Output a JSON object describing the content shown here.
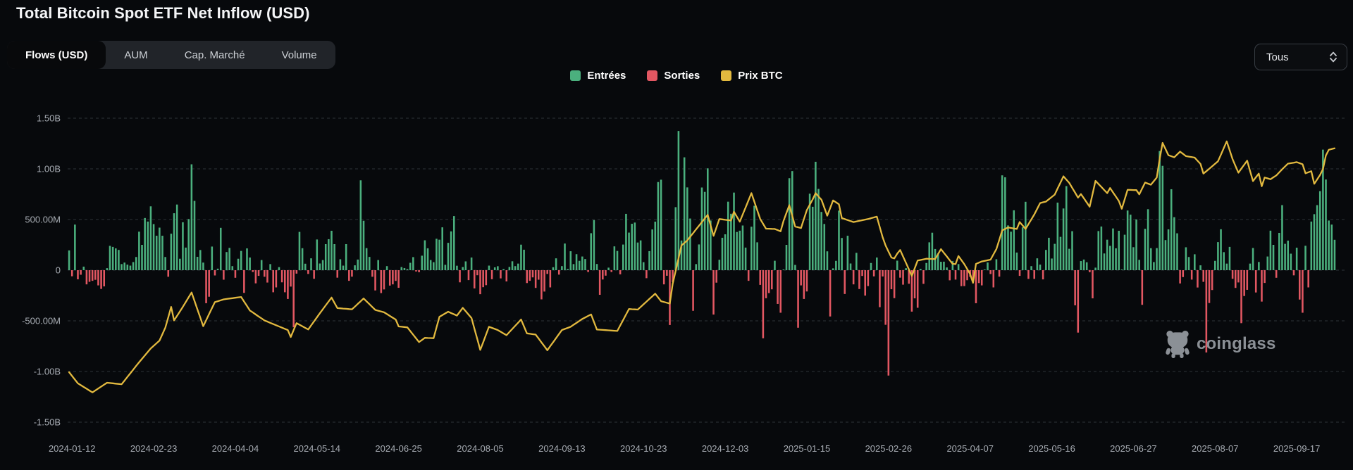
{
  "page": {
    "title": "Total Bitcoin Spot ETF Net Inflow (USD)"
  },
  "tabs": [
    {
      "label": "Flows (USD)",
      "active": true
    },
    {
      "label": "AUM",
      "active": false
    },
    {
      "label": "Cap. Marché",
      "active": false
    },
    {
      "label": "Volume",
      "active": false
    }
  ],
  "range_select": {
    "value": "Tous"
  },
  "legend": [
    {
      "label": "Entrées",
      "color": "#4bb07e"
    },
    {
      "label": "Sorties",
      "color": "#e25762"
    },
    {
      "label": "Prix BTC",
      "color": "#e2b93f"
    }
  ],
  "watermark": {
    "text": "coinglass"
  },
  "chart_data": {
    "type": "bar+line",
    "title": "Total Bitcoin Spot ETF Net Inflow (USD)",
    "grid": "horizontal-dashed",
    "legend_position": "top-center",
    "y_axis": {
      "tick_labels": [
        "1.50B",
        "1.00B",
        "500.00M",
        "0",
        "-500.00M",
        "-1.00B",
        "-1.50B"
      ],
      "tick_values_m": [
        1500,
        1000,
        500,
        0,
        -500,
        -1000,
        -1500
      ],
      "ylim_m": [
        -1500,
        1500
      ]
    },
    "x_axis": {
      "tick_labels": [
        "2024-01-12",
        "2024-02-23",
        "2024-04-04",
        "2024-05-14",
        "2024-06-25",
        "2024-08-05",
        "2024-09-13",
        "2024-10-23",
        "2024-12-03",
        "2025-01-15",
        "2025-02-26",
        "2025-04-07",
        "2025-05-16",
        "2025-06-27",
        "2025-08-07",
        "2025-09-17"
      ],
      "tick_indices": [
        1,
        29,
        57,
        85,
        113,
        141,
        169,
        197,
        225,
        253,
        281,
        309,
        337,
        365,
        393,
        421
      ]
    },
    "series": [
      {
        "name": "Net flow (USD millions, green=Entrées, red=Sorties)",
        "type": "bar",
        "color_positive": "#4bb07e",
        "color_negative": "#e25762",
        "values_m": [
          195,
          -60,
          450,
          -90,
          -45,
          35,
          -140,
          -115,
          -105,
          -95,
          -150,
          -185,
          -160,
          20,
          240,
          230,
          215,
          200,
          60,
          75,
          55,
          45,
          80,
          130,
          380,
          250,
          515,
          480,
          630,
          455,
          340,
          420,
          340,
          130,
          -65,
          360,
          562,
          648,
          113,
          473,
          223,
          505,
          1045,
          684,
          132,
          199,
          75,
          -326,
          -262,
          233,
          -52,
          15,
          418,
          -94,
          179,
          220,
          40,
          -75,
          113,
          190,
          -224,
          215,
          125,
          -18,
          -130,
          -56,
          100,
          -65,
          -122,
          60,
          -218,
          -170,
          30,
          -120,
          -218,
          -284,
          -162,
          -564,
          -34,
          378,
          217,
          64,
          -37,
          117,
          -85,
          303,
          66,
          100,
          257,
          306,
          389,
          257,
          -74,
          108,
          45,
          257,
          -105,
          -64,
          48,
          105,
          887,
          488,
          218,
          131,
          -65,
          -200,
          100,
          -226,
          -190,
          40,
          -152,
          -140,
          -106,
          -174,
          31,
          21,
          11,
          73,
          129,
          -13,
          -20,
          143,
          295,
          216,
          100,
          79,
          310,
          301,
          423,
          53,
          270,
          383,
          534,
          44,
          -120,
          31,
          87,
          -98,
          125,
          -180,
          -50,
          -237,
          -168,
          -148,
          45,
          -89,
          28,
          39,
          -81,
          11,
          -111,
          32,
          88,
          40,
          65,
          252,
          202,
          -127,
          -105,
          -71,
          -175,
          -94,
          -288,
          -211,
          -37,
          -170,
          29,
          117,
          -44,
          40,
          263,
          12,
          187,
          60,
          158,
          92,
          135,
          110,
          -18,
          365,
          494,
          61,
          -243,
          -92,
          -54,
          25,
          -18,
          235,
          190,
          -41,
          253,
          556,
          371,
          458,
          470,
          273,
          294,
          79,
          -79,
          188,
          402,
          479,
          870,
          893,
          -140,
          -55,
          -541,
          -117,
          622,
          1374,
          293,
          1114,
          817,
          510,
          -401,
          60,
          254,
          816,
          773,
          1005,
          490,
          -438,
          -123,
          103,
          320,
          354,
          676,
          557,
          766,
          377,
          390,
          441,
          223,
          -105,
          429,
          636,
          275,
          -145,
          -672,
          -277,
          -226,
          -189,
          93,
          -333,
          -420,
          5,
          250,
          908,
          978,
          52,
          -568,
          -150,
          -284,
          -210,
          755,
          626,
          1070,
          802,
          575,
          456,
          186,
          -457,
          18,
          92,
          588,
          318,
          -235,
          340,
          66,
          -140,
          171,
          -186,
          -57,
          -251,
          -157,
          71,
          -61,
          125,
          -365,
          -62,
          -539,
          -1040,
          -188,
          -276,
          94,
          -74,
          -143,
          20,
          -134,
          -409,
          -278,
          -371,
          13,
          -135,
          71,
          275,
          370,
          209,
          165,
          83,
          84,
          27,
          -100,
          89,
          -93,
          60,
          -158,
          -157,
          -99,
          -65,
          -103,
          -326,
          -127,
          -150,
          2,
          76,
          -38,
          -170,
          108,
          -64,
          936,
          917,
          442,
          380,
          591,
          174,
          -56,
          423,
          675,
          -86,
          40,
          -86,
          117,
          55,
          -91,
          200,
          320,
          115,
          260,
          667,
          329,
          609,
          830,
          211,
          385,
          -347,
          -616,
          90,
          105,
          78,
          -20,
          -278,
          25,
          386,
          431,
          165,
          301,
          240,
          412,
          216,
          389,
          6,
          350,
          589,
          548,
          227,
          501,
          102,
          -342,
          408,
          602,
          217,
          80,
          218,
          1176,
          1030,
          297,
          403,
          799,
          523,
          364,
          -131,
          -68,
          226,
          130,
          -93,
          157,
          -171,
          48,
          -115,
          -812,
          -324,
          -196,
          92,
          277,
          404,
          178,
          65,
          230,
          -85,
          -175,
          -121,
          -523,
          -255,
          -194,
          65,
          219,
          -220,
          81,
          -310,
          -126,
          135,
          390,
          250,
          -75,
          368,
          642,
          260,
          292,
          163,
          -51,
          222,
          -290,
          -420,
          241,
          -170,
          480,
          553,
          642,
          780,
          1190,
          895,
          490,
          450,
          300
        ]
      },
      {
        "name": "Prix BTC",
        "type": "line",
        "color": "#e2b93f",
        "hidden_axis_range_usd": [
          30000,
          131000
        ],
        "price_keypoints_usd": [
          [
            0,
            46600
          ],
          [
            3,
            42900
          ],
          [
            8,
            39900
          ],
          [
            13,
            43100
          ],
          [
            18,
            42600
          ],
          [
            24,
            49900
          ],
          [
            28,
            54500
          ],
          [
            31,
            57100
          ],
          [
            33,
            61400
          ],
          [
            35,
            68300
          ],
          [
            36,
            63800
          ],
          [
            39,
            68300
          ],
          [
            42,
            73100
          ],
          [
            46,
            61900
          ],
          [
            50,
            69900
          ],
          [
            53,
            70800
          ],
          [
            59,
            71600
          ],
          [
            62,
            67100
          ],
          [
            67,
            63800
          ],
          [
            75,
            60600
          ],
          [
            76,
            58300
          ],
          [
            78,
            62900
          ],
          [
            82,
            60800
          ],
          [
            86,
            66200
          ],
          [
            90,
            71400
          ],
          [
            92,
            67900
          ],
          [
            97,
            67500
          ],
          [
            101,
            71100
          ],
          [
            105,
            67300
          ],
          [
            108,
            66500
          ],
          [
            112,
            64100
          ],
          [
            113,
            61800
          ],
          [
            116,
            61500
          ],
          [
            120,
            56600
          ],
          [
            122,
            58000
          ],
          [
            125,
            57900
          ],
          [
            127,
            65000
          ],
          [
            130,
            66700
          ],
          [
            133,
            65400
          ],
          [
            135,
            68000
          ],
          [
            138,
            64600
          ],
          [
            141,
            54000
          ],
          [
            144,
            61700
          ],
          [
            147,
            60600
          ],
          [
            150,
            58900
          ],
          [
            155,
            64100
          ],
          [
            157,
            59500
          ],
          [
            160,
            59100
          ],
          [
            164,
            53900
          ],
          [
            169,
            60600
          ],
          [
            172,
            61700
          ],
          [
            176,
            64300
          ],
          [
            179,
            65800
          ],
          [
            181,
            60800
          ],
          [
            188,
            60300
          ],
          [
            192,
            67600
          ],
          [
            195,
            67400
          ],
          [
            201,
            72700
          ],
          [
            203,
            70200
          ],
          [
            206,
            69400
          ],
          [
            207,
            76000
          ],
          [
            210,
            88700
          ],
          [
            212,
            90400
          ],
          [
            219,
            98900
          ],
          [
            221,
            91900
          ],
          [
            223,
            97500
          ],
          [
            227,
            97000
          ],
          [
            228,
            99900
          ],
          [
            230,
            96600
          ],
          [
            234,
            106100
          ],
          [
            237,
            97500
          ],
          [
            239,
            94300
          ],
          [
            242,
            94200
          ],
          [
            244,
            93400
          ],
          [
            245,
            96900
          ],
          [
            247,
            102100
          ],
          [
            249,
            95000
          ],
          [
            251,
            94500
          ],
          [
            253,
            100500
          ],
          [
            255,
            104000
          ],
          [
            256,
            106100
          ],
          [
            258,
            103900
          ],
          [
            260,
            98600
          ],
          [
            262,
            103700
          ],
          [
            264,
            102400
          ],
          [
            265,
            97800
          ],
          [
            269,
            96500
          ],
          [
            274,
            97500
          ],
          [
            277,
            98300
          ],
          [
            279,
            91400
          ],
          [
            280,
            88700
          ],
          [
            282,
            84700
          ],
          [
            283,
            84400
          ],
          [
            284,
            86000
          ],
          [
            285,
            87200
          ],
          [
            289,
            78600
          ],
          [
            291,
            83700
          ],
          [
            294,
            84300
          ],
          [
            297,
            84200
          ],
          [
            299,
            87500
          ],
          [
            303,
            82600
          ],
          [
            304,
            82500
          ],
          [
            305,
            85200
          ],
          [
            307,
            82500
          ],
          [
            309,
            79200
          ],
          [
            310,
            76300
          ],
          [
            311,
            82600
          ],
          [
            313,
            83400
          ],
          [
            316,
            84000
          ],
          [
            318,
            87500
          ],
          [
            320,
            93700
          ],
          [
            322,
            94700
          ],
          [
            325,
            94200
          ],
          [
            326,
            96500
          ],
          [
            328,
            94200
          ],
          [
            331,
            99000
          ],
          [
            333,
            102800
          ],
          [
            335,
            103300
          ],
          [
            338,
            105600
          ],
          [
            341,
            111700
          ],
          [
            343,
            109500
          ],
          [
            346,
            104600
          ],
          [
            347,
            105800
          ],
          [
            350,
            101600
          ],
          [
            352,
            110200
          ],
          [
            356,
            106100
          ],
          [
            357,
            107800
          ],
          [
            360,
            103500
          ],
          [
            361,
            100900
          ],
          [
            363,
            107200
          ],
          [
            366,
            107100
          ],
          [
            367,
            105700
          ],
          [
            369,
            109600
          ],
          [
            371,
            108900
          ],
          [
            373,
            111300
          ],
          [
            374,
            117500
          ],
          [
            375,
            122800
          ],
          [
            377,
            118700
          ],
          [
            379,
            118000
          ],
          [
            381,
            119900
          ],
          [
            383,
            118400
          ],
          [
            386,
            117900
          ],
          [
            388,
            115800
          ],
          [
            389,
            112600
          ],
          [
            392,
            115000
          ],
          [
            394,
            116700
          ],
          [
            397,
            123300
          ],
          [
            399,
            117400
          ],
          [
            401,
            112900
          ],
          [
            404,
            116900
          ],
          [
            406,
            110100
          ],
          [
            408,
            112600
          ],
          [
            409,
            108400
          ],
          [
            410,
            111300
          ],
          [
            412,
            110700
          ],
          [
            414,
            112000
          ],
          [
            416,
            114000
          ],
          [
            418,
            115900
          ],
          [
            421,
            116400
          ],
          [
            423,
            115700
          ],
          [
            424,
            112700
          ],
          [
            426,
            113400
          ],
          [
            427,
            109200
          ],
          [
            429,
            112100
          ],
          [
            430,
            114100
          ],
          [
            431,
            118600
          ],
          [
            432,
            120500
          ],
          [
            434,
            121000
          ]
        ]
      }
    ]
  }
}
